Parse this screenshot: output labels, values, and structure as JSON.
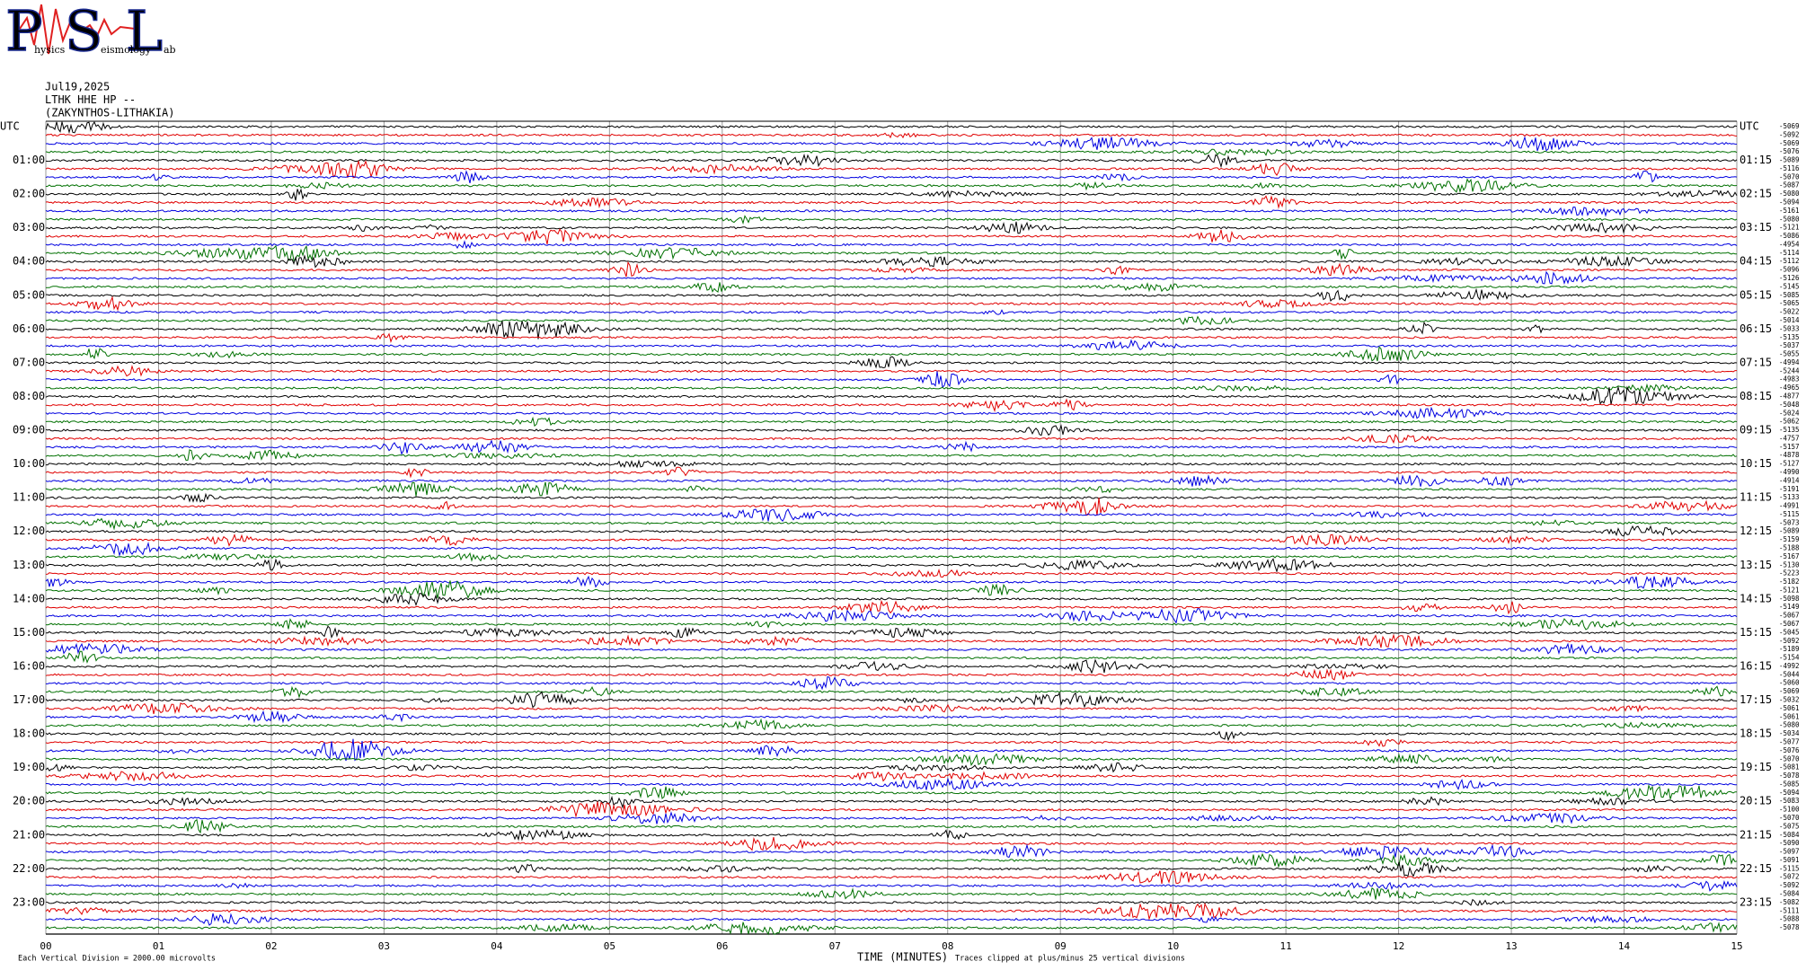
{
  "logo": {
    "letters": [
      "P",
      "S",
      "L"
    ],
    "words": [
      "hysics",
      "eismology",
      "ab"
    ]
  },
  "header": {
    "date": "Jul19,2025",
    "station": "LTHK HHE HP --",
    "location": "(ZAKYNTHOS-LITHAKIA)"
  },
  "left_labels": [
    "UTC",
    "01:00",
    "02:00",
    "03:00",
    "04:00",
    "05:00",
    "06:00",
    "07:00",
    "08:00",
    "09:00",
    "10:00",
    "11:00",
    "12:00",
    "13:00",
    "14:00",
    "15:00",
    "16:00",
    "17:00",
    "18:00",
    "19:00",
    "20:00",
    "21:00",
    "22:00",
    "23:00"
  ],
  "right_labels": [
    "UTC",
    "01:15",
    "02:15",
    "03:15",
    "04:15",
    "05:15",
    "06:15",
    "07:15",
    "08:15",
    "09:15",
    "10:15",
    "11:15",
    "12:15",
    "13:15",
    "14:15",
    "15:15",
    "16:15",
    "17:15",
    "18:15",
    "19:15",
    "20:15",
    "21:15",
    "22:15",
    "23:15"
  ],
  "trace_offsets": [
    "-5069",
    "-5092",
    "-5069",
    "-5076",
    "-5089",
    "-5116",
    "-5070",
    "-5087",
    "-5080",
    "-5094",
    "-5161",
    "-5080",
    "-5121",
    "-5086",
    "-4954",
    "-5114",
    "-5112",
    "-5096",
    "-5126",
    "-5145",
    "-5085",
    "-5065",
    "-5022",
    "-5014",
    "-5033",
    "-5135",
    "-5037",
    "-5055",
    "-4994",
    "-5244",
    "-4983",
    "-4965",
    "-4877",
    "-5048",
    "-5024",
    "-5062",
    "-5135",
    "-4757",
    "-5157",
    "-4878",
    "-5127",
    "-4990",
    "-4914",
    "-5191",
    "-5133",
    "-4991",
    "-5115",
    "-5073",
    "-5089",
    "-5159",
    "-5188",
    "-5167",
    "-5130",
    "-5223",
    "-5182",
    "-5121",
    "-5098",
    "-5149",
    "-5067",
    "-5067",
    "-5045",
    "-5092",
    "-5189",
    "-5154",
    "-4992",
    "-5044",
    "-5060",
    "-5069",
    "-5032",
    "-5061",
    "-5061",
    "-5080",
    "-5034",
    "-5077",
    "-5076",
    "-5070",
    "-5081",
    "-5078",
    "-5085",
    "-5094",
    "-5083",
    "-5100",
    "-5070",
    "-5075",
    "-5084",
    "-5090",
    "-5097",
    "-5091",
    "-5115",
    "-5072",
    "-5092",
    "-5084",
    "-5082",
    "-5111",
    "-5088",
    "-5078"
  ],
  "x_ticks": [
    {
      "value": 0,
      "label": "00"
    },
    {
      "value": 1,
      "label": "01"
    },
    {
      "value": 2,
      "label": "02"
    },
    {
      "value": 3,
      "label": "03"
    },
    {
      "value": 4,
      "label": "04"
    },
    {
      "value": 5,
      "label": "05"
    },
    {
      "value": 6,
      "label": "06"
    },
    {
      "value": 7,
      "label": "07"
    },
    {
      "value": 8,
      "label": "08"
    },
    {
      "value": 9,
      "label": "09"
    },
    {
      "value": 10,
      "label": "10"
    },
    {
      "value": 11,
      "label": "11"
    },
    {
      "value": 12,
      "label": "12"
    },
    {
      "value": 13,
      "label": "13"
    },
    {
      "value": 14,
      "label": "14"
    },
    {
      "value": 15,
      "label": "15"
    }
  ],
  "x_axis_title": "TIME (MINUTES)",
  "footer_left": "Each Vertical Division = 2000.00 microvolts",
  "footer_right": "Traces clipped at plus/minus 25 vertical divisions"
}
